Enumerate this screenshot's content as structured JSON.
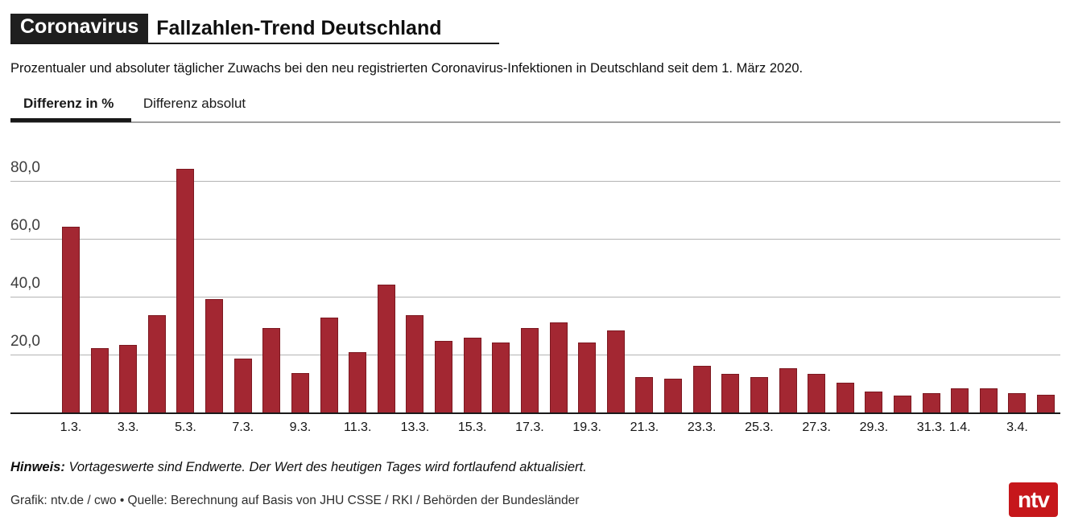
{
  "header": {
    "kicker": "Coronavirus",
    "title": "Fallzahlen-Trend Deutschland",
    "subtitle": "Prozentualer und absoluter täglicher Zuwachs bei den neu registrierten Coronavirus-Infektionen in Deutschland seit dem 1. März 2020."
  },
  "tabs": [
    {
      "label": "Differenz in %",
      "active": true
    },
    {
      "label": "Differenz absolut",
      "active": false
    }
  ],
  "chart_data": {
    "type": "bar",
    "title": "Fallzahlen-Trend Deutschland",
    "ylabel": "Differenz in %",
    "categories": [
      "1.3.",
      "2.3.",
      "3.3.",
      "4.3.",
      "5.3.",
      "6.3.",
      "7.3.",
      "8.3.",
      "9.3.",
      "10.3.",
      "11.3.",
      "12.3.",
      "13.3.",
      "14.3.",
      "15.3.",
      "16.3.",
      "17.3.",
      "18.3.",
      "19.3.",
      "20.3.",
      "21.3.",
      "22.3.",
      "23.3.",
      "24.3.",
      "25.3.",
      "26.3.",
      "27.3.",
      "28.3.",
      "29.3.",
      "30.3.",
      "31.3.",
      "1.4.",
      "2.4.",
      "3.4.",
      "4.4."
    ],
    "values": [
      64.5,
      22.5,
      23.5,
      34,
      84.5,
      39.5,
      19,
      29.5,
      14,
      33,
      21,
      44.5,
      34,
      25,
      26,
      24.5,
      29.5,
      31.5,
      24.5,
      28.5,
      12.5,
      12,
      16.5,
      13.5,
      12.5,
      15.5,
      13.5,
      10.5,
      7.5,
      6,
      7,
      8.5,
      8.5,
      7,
      6.5
    ],
    "x_tick_labels": [
      "1.3.",
      "3.3.",
      "5.3.",
      "7.3.",
      "9.3.",
      "11.3.",
      "13.3.",
      "15.3.",
      "17.3.",
      "19.3.",
      "21.3.",
      "23.3.",
      "25.3.",
      "27.3.",
      "29.3.",
      "31.3.",
      "1.4.",
      "3.4."
    ],
    "y_ticks": [
      "20,0",
      "40,0",
      "60,0",
      "80,0"
    ],
    "y_tick_values": [
      20,
      40,
      60,
      80
    ],
    "ylim": [
      0,
      90
    ],
    "grid": true,
    "legend": "none",
    "bar_color": "#a32732"
  },
  "note": {
    "bold": "Hinweis:",
    "text": " Vortageswerte sind Endwerte. Der Wert des heutigen Tages wird fortlaufend aktualisiert."
  },
  "footer": {
    "credit": "Grafik: ntv.de / cwo • Quelle: Berechnung auf Basis von JHU CSSE / RKI / Behörden der Bundesländer"
  },
  "logo": {
    "text": "ntv",
    "color": "#c6171b"
  }
}
